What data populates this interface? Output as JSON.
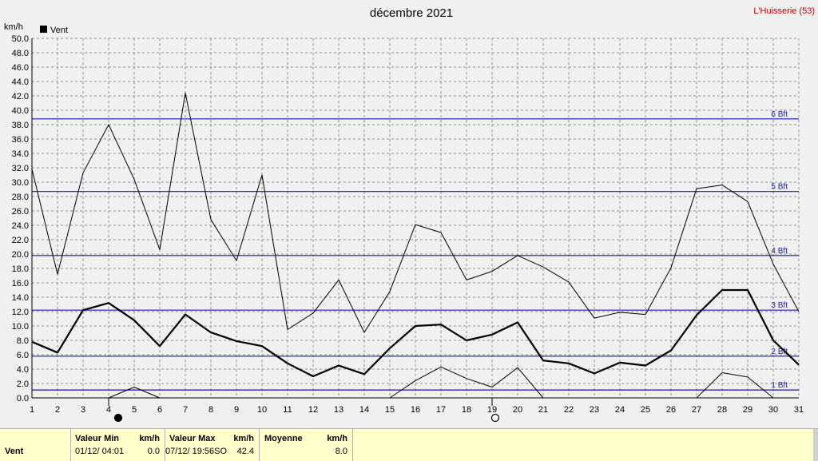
{
  "header": {
    "title": "décembre 2021",
    "station": "L'Huisserie (53)",
    "unit": "km/h",
    "legend_label": "Vent"
  },
  "chart_data": {
    "type": "line",
    "title": "décembre 2021",
    "ylabel": "km/h",
    "xlim": [
      1,
      31
    ],
    "ylim": [
      0,
      50
    ],
    "x": [
      1,
      2,
      3,
      4,
      5,
      6,
      7,
      8,
      9,
      10,
      11,
      12,
      13,
      14,
      15,
      16,
      17,
      18,
      19,
      20,
      21,
      22,
      23,
      24,
      25,
      26,
      27,
      28,
      29,
      30,
      31
    ],
    "x_ticks": [
      "1",
      "2",
      "3",
      "4",
      "5",
      "6",
      "7",
      "8",
      "9",
      "10",
      "11",
      "12",
      "13",
      "14",
      "15",
      "16",
      "17",
      "18",
      "19",
      "20",
      "21",
      "22",
      "23",
      "24",
      "25",
      "26",
      "27",
      "28",
      "29",
      "30",
      "31"
    ],
    "y_ticks": [
      "0.0",
      "2.0",
      "4.0",
      "6.0",
      "8.0",
      "10.0",
      "12.0",
      "14.0",
      "16.0",
      "18.0",
      "20.0",
      "22.0",
      "24.0",
      "26.0",
      "28.0",
      "30.0",
      "32.0",
      "34.0",
      "36.0",
      "38.0",
      "40.0",
      "42.0",
      "44.0",
      "46.0",
      "48.0",
      "50.0"
    ],
    "grid": true,
    "legend": "top-left",
    "series": [
      {
        "name": "Vent",
        "role": "mean",
        "color": "#000000",
        "values": [
          7.8,
          6.3,
          12.2,
          13.2,
          10.8,
          7.2,
          11.6,
          9.1,
          7.9,
          7.2,
          4.8,
          3.0,
          4.5,
          3.3,
          6.9,
          10.0,
          10.2,
          8.0,
          8.8,
          10.5,
          5.2,
          4.8,
          3.4,
          4.9,
          4.5,
          6.6,
          11.5,
          15.0,
          15.0,
          8.0,
          4.6
        ]
      },
      {
        "role": "max",
        "color": "#000000",
        "values": [
          31.8,
          17.2,
          31.3,
          38.0,
          30.4,
          20.6,
          42.4,
          24.8,
          19.1,
          31.0,
          9.5,
          11.8,
          16.4,
          9.1,
          14.8,
          24.1,
          23.0,
          16.4,
          17.6,
          19.8,
          18.2,
          16.1,
          11.1,
          11.9,
          11.6,
          18.1,
          29.1,
          29.6,
          27.3,
          18.6,
          12.0
        ]
      },
      {
        "role": "min",
        "color": "#000000",
        "values": [
          null,
          null,
          null,
          0.0,
          1.5,
          0.0,
          null,
          null,
          null,
          null,
          null,
          null,
          null,
          null,
          0.0,
          2.4,
          4.3,
          2.7,
          1.5,
          4.2,
          0.0,
          null,
          null,
          null,
          null,
          null,
          0.0,
          3.5,
          2.9,
          0.0,
          0.0
        ]
      }
    ],
    "beaufort": [
      {
        "label": "1 Bft",
        "value": 1.1,
        "color": "#1a1aa6"
      },
      {
        "label": "2 Bft",
        "value": 5.8,
        "color": "#1a1aa6"
      },
      {
        "label": "3 Bft",
        "value": 12.2,
        "color": "#1a1aa6"
      },
      {
        "label": "4 Bft",
        "value": 19.8,
        "color": "#1a1aa6"
      },
      {
        "label": "5 Bft",
        "value": 28.7,
        "color": "#1a1aa6"
      },
      {
        "label": "6 Bft",
        "value": 38.8,
        "color": "#1a1aa6"
      }
    ],
    "moon_phases": [
      {
        "day": 4,
        "phase": "new-moon"
      },
      {
        "day": 19,
        "phase": "full-moon"
      }
    ]
  },
  "footer": {
    "row_label": "Vent",
    "min_header": "Valeur Min",
    "min_unit": "km/h",
    "min_date": "01/12/  04:01",
    "min_value": "0.0",
    "max_header": "Valeur Max",
    "max_unit": "km/h",
    "max_date": "07/12/  19:56SO",
    "max_value": "42.4",
    "mean_header": "Moyenne",
    "mean_unit": "km/h",
    "mean_value": "8.0"
  }
}
